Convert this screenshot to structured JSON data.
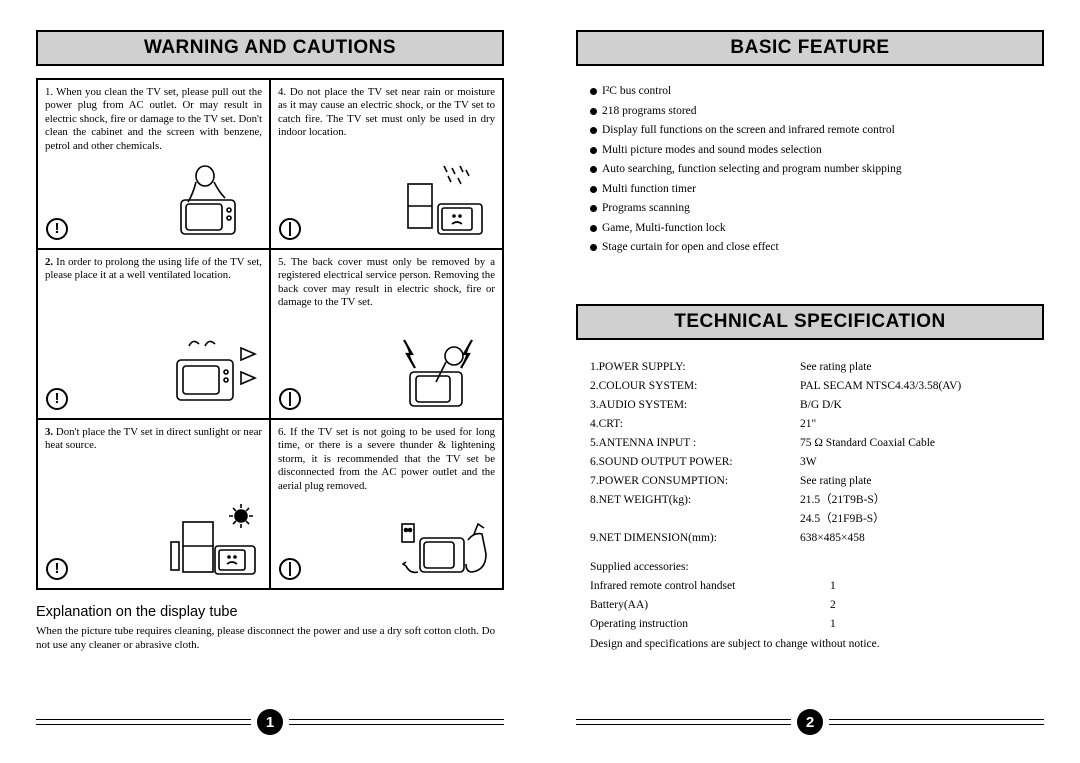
{
  "left": {
    "header": "WARNING AND CAUTIONS",
    "cells": [
      {
        "num": "1.",
        "text": "When you clean the TV set, please pull out the power plug from AC outlet.\nOr may result in electric shock, fire or damage to the TV set. Don't clean the cabinet and the screen with benzene, petrol and other chemicals.",
        "icon": "!"
      },
      {
        "num": "4.",
        "text": "Do not place the TV set near rain or moisture as it may cause an electric shock, or the TV set to catch fire. The TV set must only be used in dry indoor location.",
        "icon": "|"
      },
      {
        "num": "2.",
        "bold": true,
        "text": "In order to prolong the using life of the TV set, please place it at a well ventilated location.",
        "icon": "!"
      },
      {
        "num": "5.",
        "text": "The back cover must only be removed by a registered electrical service person. Removing the back cover may result in electric shock, fire or damage to the TV set.",
        "icon": "|"
      },
      {
        "num": "3.",
        "bold": true,
        "text": "Don't place the TV set in direct sunlight or near heat source.",
        "icon": "!"
      },
      {
        "num": "6.",
        "text": "If the TV set is not going to be used for long time, or there is a severe thunder & lightening storm, it is recommended that the TV set be disconnected from the AC power outlet and the aerial plug removed.",
        "icon": "|"
      }
    ],
    "exp_title": "Explanation on the display tube",
    "exp_body": "When the picture tube requires cleaning, please disconnect the power and use a dry soft cotton cloth. Do not use any cleaner or abrasive cloth.",
    "page_num": "1"
  },
  "right": {
    "header1": "BASIC FEATURE",
    "features": [
      "I²C bus control",
      "218 programs stored",
      "Display full functions on the screen and infrared remote control",
      "Multi picture modes and sound modes selection",
      "Auto searching, function selecting and program number skipping",
      "Multi function timer",
      "Programs scanning",
      "Game, Multi-function lock",
      "Stage curtain for open and close effect"
    ],
    "header2": "TECHNICAL SPECIFICATION",
    "specs": [
      {
        "label": "1.POWER SUPPLY:",
        "val": "See rating plate"
      },
      {
        "label": "2.COLOUR SYSTEM:",
        "val": "PAL   SECAM   NTSC4.43/3.58(AV)"
      },
      {
        "label": "3.AUDIO SYSTEM:",
        "val": "B/G   D/K"
      },
      {
        "label": "4.CRT:",
        "val": "21\""
      },
      {
        "label": "5.ANTENNA INPUT :",
        "val": "75 Ω  Standard Coaxial Cable"
      },
      {
        "label": "6.SOUND OUTPUT POWER:",
        "val": "3W"
      },
      {
        "label": "7.POWER CONSUMPTION:",
        "val": " See rating plate"
      },
      {
        "label": "8.NET WEIGHT(kg):",
        "val": "21.5（21T9B-S）"
      },
      {
        "label": "",
        "val": " 24.5（21F9B-S）"
      },
      {
        "label": "9.NET DIMENSION(mm):",
        "val": "638×485×458"
      }
    ],
    "accessories_title": "Supplied accessories:",
    "accessories": [
      {
        "label": "Infrared remote control handset",
        "val": "1"
      },
      {
        "label": "Battery(AA)",
        "val": "2"
      },
      {
        "label": "Operating instruction",
        "val": "1"
      }
    ],
    "disclaimer": "Design and specifications are subject to change without notice.",
    "page_num": "2"
  }
}
